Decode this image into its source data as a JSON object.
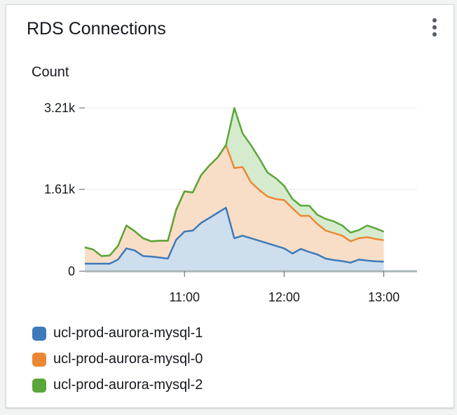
{
  "widget": {
    "title": "RDS Connections"
  },
  "chart_data": {
    "type": "area",
    "stacked": true,
    "ylabel": "Count",
    "ylim": [
      0,
      3210
    ],
    "yticks": [
      {
        "value": 0,
        "label": "0"
      },
      {
        "value": 1610,
        "label": "1.61k"
      },
      {
        "value": 3210,
        "label": "3.21k"
      }
    ],
    "xlim": [
      600,
      800
    ],
    "xticks": [
      {
        "value": 660,
        "label": "11:00"
      },
      {
        "value": 720,
        "label": "12:00"
      },
      {
        "value": 780,
        "label": "13:00"
      }
    ],
    "x_unit": "minutes since 00:00",
    "grid": true,
    "legend_position": "bottom",
    "x": [
      600,
      605,
      610,
      615,
      620,
      625,
      630,
      635,
      640,
      645,
      650,
      655,
      660,
      665,
      670,
      675,
      680,
      685,
      690,
      695,
      700,
      705,
      710,
      715,
      720,
      725,
      730,
      735,
      740,
      745,
      750,
      755,
      760,
      765,
      770,
      775,
      780
    ],
    "series": [
      {
        "name": "ucl-prod-aurora-mysql-1",
        "color": "#3d7ab8",
        "fill": "#cfdeed",
        "values": [
          150,
          150,
          150,
          150,
          230,
          450,
          410,
          300,
          290,
          270,
          250,
          620,
          780,
          800,
          950,
          1050,
          1150,
          1250,
          650,
          700,
          650,
          600,
          550,
          500,
          450,
          350,
          440,
          380,
          330,
          250,
          220,
          200,
          170,
          230,
          210,
          195,
          190
        ]
      },
      {
        "name": "ucl-prod-aurora-mysql-0",
        "color": "#ec8834",
        "fill": "#f9dec7",
        "values": [
          320,
          280,
          150,
          160,
          270,
          450,
          380,
          350,
          300,
          330,
          350,
          590,
          790,
          750,
          940,
          1030,
          1090,
          1230,
          1380,
          1350,
          1100,
          1000,
          920,
          920,
          950,
          890,
          650,
          710,
          600,
          550,
          530,
          500,
          420,
          420,
          460,
          440,
          420
        ]
      },
      {
        "name": "ucl-prod-aurora-mysql-2",
        "color": "#5aa63a",
        "fill": "#d6ebce",
        "values": [
          0,
          0,
          0,
          0,
          0,
          0,
          0,
          0,
          0,
          0,
          0,
          0,
          0,
          0,
          0,
          0,
          0,
          0,
          1180,
          660,
          730,
          620,
          470,
          410,
          280,
          180,
          200,
          200,
          180,
          230,
          230,
          200,
          170,
          160,
          230,
          210,
          170
        ]
      }
    ]
  }
}
